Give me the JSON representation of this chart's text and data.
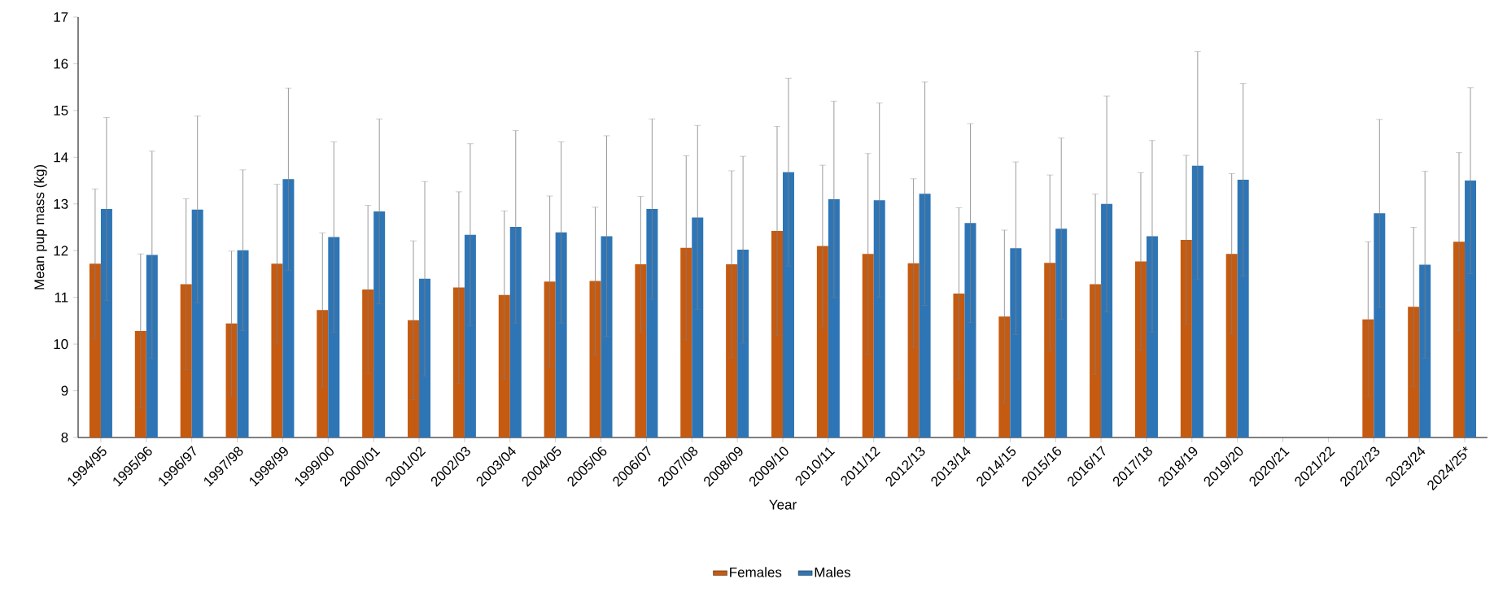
{
  "chart_data": {
    "type": "bar",
    "xlabel": "Year",
    "ylabel": "Mean pup mass (kg)",
    "categories": [
      "1994/95",
      "1995/96",
      "1996/97",
      "1997/98",
      "1998/99",
      "1999/00",
      "2000/01",
      "2001/02",
      "2002/03",
      "2003/04",
      "2004/05",
      "2005/06",
      "2006/07",
      "2007/08",
      "2008/09",
      "2009/10",
      "2010/11",
      "2011/12",
      "2012/13",
      "2013/14",
      "2014/15",
      "2015/16",
      "2016/17",
      "2017/18",
      "2018/19",
      "2019/20",
      "2020/21",
      "2021/22",
      "2022/23",
      "2023/24",
      "2024/25*"
    ],
    "series": [
      {
        "name": "Females",
        "color": "#c55a11",
        "values": [
          11.72,
          10.28,
          11.28,
          10.44,
          11.72,
          10.73,
          11.17,
          10.51,
          11.21,
          11.05,
          11.34,
          11.35,
          11.71,
          12.06,
          11.71,
          12.42,
          12.1,
          11.93,
          11.73,
          11.08,
          10.59,
          11.74,
          11.28,
          11.77,
          12.23,
          11.93,
          null,
          null,
          10.53,
          10.8,
          12.19
        ],
        "errors": [
          1.6,
          1.65,
          1.83,
          1.55,
          1.7,
          1.65,
          1.8,
          1.7,
          2.05,
          1.8,
          1.83,
          1.58,
          1.45,
          1.97,
          2.0,
          2.24,
          1.73,
          2.15,
          1.81,
          1.84,
          1.85,
          1.88,
          1.93,
          1.9,
          1.81,
          1.72,
          null,
          null,
          1.66,
          1.7,
          1.91
        ]
      },
      {
        "name": "Males",
        "color": "#2e75b6",
        "values": [
          12.89,
          11.91,
          12.88,
          12.01,
          13.53,
          12.29,
          12.84,
          11.4,
          12.34,
          12.51,
          12.39,
          12.31,
          12.89,
          12.71,
          12.02,
          13.68,
          13.1,
          13.08,
          13.22,
          12.59,
          12.05,
          12.47,
          13.0,
          12.31,
          13.82,
          13.52,
          null,
          null,
          12.8,
          11.7,
          13.5
        ],
        "errors": [
          1.96,
          2.22,
          2.0,
          1.72,
          1.95,
          2.04,
          1.98,
          2.08,
          1.95,
          2.06,
          1.94,
          2.15,
          1.93,
          1.97,
          2.0,
          2.01,
          2.1,
          2.08,
          2.39,
          2.13,
          1.85,
          1.94,
          2.31,
          2.05,
          2.44,
          2.06,
          null,
          null,
          2.01,
          2.0,
          1.99
        ]
      }
    ],
    "ylim": [
      8,
      17
    ],
    "yticks": [
      8,
      9,
      10,
      11,
      12,
      13,
      14,
      15,
      16,
      17
    ],
    "grid": false,
    "legend": "bottom"
  }
}
